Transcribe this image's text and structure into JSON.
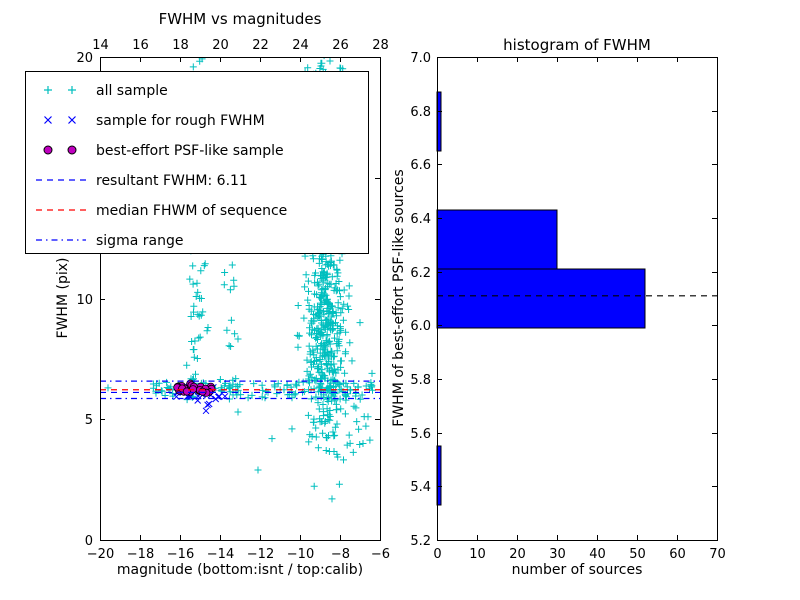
{
  "figure": {
    "background": "#ffffff"
  },
  "legend": {
    "items": [
      {
        "label": "all sample",
        "type": "marker",
        "marker": "plus",
        "color": "#00bfbf"
      },
      {
        "label": "sample for rough FWHM",
        "type": "marker",
        "marker": "x",
        "color": "#0000ff"
      },
      {
        "label": "best-effort PSF-like sample",
        "type": "marker",
        "marker": "circle",
        "color": "#bf00bf",
        "edge_color": "#000000"
      },
      {
        "label": "resultant FWHM: 6.11",
        "type": "line",
        "style": "dashed",
        "color": "#0000ff"
      },
      {
        "label": "median FHWM of sequence",
        "type": "line",
        "style": "dashed",
        "color": "#ff0000"
      },
      {
        "label": "sigma range",
        "type": "line",
        "style": "dashdot",
        "color": "#0000ff"
      }
    ]
  },
  "chart_data": [
    {
      "type": "scatter",
      "title": "FWHM vs magnitudes",
      "xlabel": "magnitude (bottom:isnt / top:calib)",
      "ylabel": "FWHM (pix)",
      "xlim": [
        -20,
        -6
      ],
      "ylim": [
        0,
        20
      ],
      "top_axis": {
        "lim": [
          14,
          28
        ]
      },
      "axes": {
        "x_ticks": {
          "values": [
            -20,
            -18,
            -16,
            -14,
            -12,
            -10,
            -8,
            -6
          ],
          "labels": [
            "−20",
            "−18",
            "−16",
            "−14",
            "−12",
            "−10",
            "−8",
            "−6"
          ]
        },
        "top_ticks": {
          "values": [
            14,
            16,
            18,
            20,
            22,
            24,
            26,
            28
          ],
          "labels": [
            "14",
            "16",
            "18",
            "20",
            "22",
            "24",
            "26",
            "28"
          ]
        },
        "y_ticks": {
          "values": [
            0,
            5,
            10,
            15,
            20
          ],
          "labels": [
            "0",
            "5",
            "10",
            "15",
            "20"
          ]
        }
      },
      "series": [
        {
          "name": "all sample",
          "marker": "plus",
          "color": "#00bfbf",
          "clusters": [
            {
              "n": 380,
              "x": [
                -8.7,
                0.5
              ],
              "y": [
                8.3,
                2.0
              ]
            },
            {
              "n": 60,
              "x": [
                -8.85,
                0.45
              ],
              "y": [
                12.0,
                1.3
              ]
            },
            {
              "n": 45,
              "x": [
                -8.8,
                0.5
              ],
              "y_range": [
                18.4,
                20.6
              ]
            },
            {
              "n": 48,
              "x": [
                -15.2,
                0.25
              ],
              "y_range": [
                6.4,
                14.0
              ]
            },
            {
              "n": 18,
              "x": [
                -15.25,
                0.2
              ],
              "y_range": [
                14.0,
                20.0
              ]
            },
            {
              "n": 22,
              "x": [
                -13.6,
                0.2
              ],
              "y_range": [
                8.0,
                15.0
              ]
            },
            {
              "n": 45,
              "x_range": [
                -17.4,
                -13.6
              ],
              "y": [
                6.25,
                0.18
              ]
            },
            {
              "n": 90,
              "x_range": [
                -13.6,
                -6.1
              ],
              "y": [
                6.2,
                0.22
              ]
            },
            {
              "n": 25,
              "x_range": [
                -9.6,
                -6.4
              ],
              "y_range": [
                3.3,
                5.6
              ]
            },
            {
              "n": 12,
              "x_range": [
                -9.2,
                -8.1
              ],
              "y_range": [
                13.5,
                18.3
              ]
            },
            {
              "points": [
                [
                  -12.1,
                  2.9
                ],
                [
                  -8.4,
                  1.7
                ],
                [
                  -19.6,
                  6.3
                ],
                [
                  -6.6,
                  5.1
                ],
                [
                  -11.4,
                  4.2
                ],
                [
                  -13.1,
                  5.3
                ],
                [
                  -7.0,
                  9.0
                ],
                [
                  -6.4,
                  6.9
                ],
                [
                  -10.4,
                  4.6
                ]
              ]
            }
          ]
        },
        {
          "name": "sample for rough FWHM",
          "marker": "x",
          "color": "#0000ff",
          "clusters": [
            {
              "n": 22,
              "x_range": [
                -16.3,
                -13.7
              ],
              "y": [
                6.05,
                0.2
              ]
            },
            {
              "points": [
                [
                  -14.7,
                  5.35
                ],
                [
                  -13.75,
                  5.95
                ],
                [
                  -16.1,
                  6.3
                ]
              ]
            }
          ]
        },
        {
          "name": "best-effort PSF-like sample",
          "marker": "circle",
          "color": "#bf00bf",
          "edge_color": "#000000",
          "clusters": [
            {
              "n": 30,
              "x_range": [
                -16.15,
                -14.25
              ],
              "y": [
                6.22,
                0.09
              ]
            }
          ]
        }
      ],
      "lines": [
        {
          "name": "resultant FWHM",
          "y": 6.11,
          "color": "#0000ff",
          "style": "dashed"
        },
        {
          "name": "median FHWM of sequence",
          "y": 6.22,
          "color": "#ff0000",
          "style": "dashed"
        },
        {
          "name": "sigma range low",
          "y": 5.86,
          "color": "#0000ff",
          "style": "dashdot"
        },
        {
          "name": "sigma range high",
          "y": 6.58,
          "color": "#0000ff",
          "style": "dashdot"
        }
      ]
    },
    {
      "type": "bar",
      "orientation": "horizontal",
      "title": "histogram of FWHM",
      "xlabel": "number of sources",
      "ylabel": "FWHM of best-effort PSF-like sources",
      "xlim": [
        0,
        70
      ],
      "ylim": [
        5.2,
        7.0
      ],
      "bin_edges": [
        5.33,
        5.55,
        5.77,
        5.99,
        6.21,
        6.43,
        6.65,
        6.87
      ],
      "counts": [
        1,
        0,
        0,
        52,
        30,
        0,
        1
      ],
      "bar_color": "#0000ff",
      "bar_edge_color": "#000000",
      "axes": {
        "x_ticks": {
          "values": [
            0,
            10,
            20,
            30,
            40,
            50,
            60,
            70
          ],
          "labels": [
            "0",
            "10",
            "20",
            "30",
            "40",
            "50",
            "60",
            "70"
          ]
        },
        "y_ticks": {
          "values": [
            5.2,
            5.4,
            5.6,
            5.8,
            6.0,
            6.2,
            6.4,
            6.6,
            6.8,
            7.0
          ],
          "labels": [
            "5.2",
            "5.4",
            "5.6",
            "5.8",
            "6.0",
            "6.2",
            "6.4",
            "6.6",
            "6.8",
            "7.0"
          ]
        }
      },
      "reference_line": {
        "y": 6.11,
        "color": "#000000",
        "style": "dashed"
      }
    }
  ]
}
